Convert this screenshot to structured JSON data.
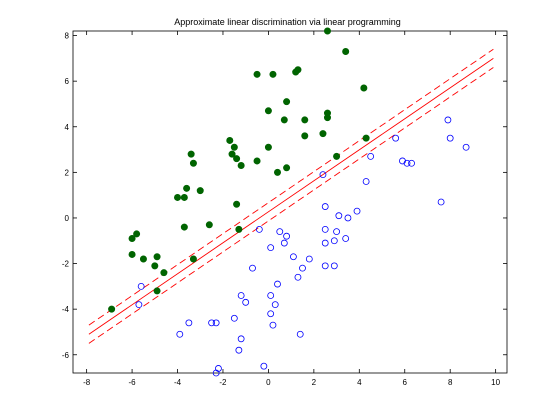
{
  "chart_data": {
    "type": "scatter",
    "title": "Approximate linear discrimination via linear programming",
    "xlabel": "",
    "ylabel": "",
    "xlim": [
      -8.6,
      10.5
    ],
    "ylim": [
      -6.8,
      8.2
    ],
    "xticks": [
      -8,
      -6,
      -4,
      -2,
      0,
      2,
      4,
      6,
      8,
      10
    ],
    "yticks": [
      -6,
      -4,
      -2,
      0,
      2,
      4,
      6,
      8
    ],
    "grid": false,
    "colors": {
      "class1": "#006400",
      "class2": "#0000ff",
      "separator": "#ff0000"
    },
    "series": [
      {
        "marker": "filled-circle",
        "color": "#006400",
        "points": [
          [
            2.6,
            8.2
          ],
          [
            3.4,
            7.3
          ],
          [
            1.3,
            6.5
          ],
          [
            1.2,
            6.4
          ],
          [
            0.2,
            6.3
          ],
          [
            -0.5,
            6.3
          ],
          [
            4.2,
            5.7
          ],
          [
            0.8,
            5.1
          ],
          [
            0.0,
            4.7
          ],
          [
            1.6,
            4.3
          ],
          [
            2.6,
            4.6
          ],
          [
            2.6,
            4.4
          ],
          [
            0.7,
            4.3
          ],
          [
            -1.7,
            3.4
          ],
          [
            -1.5,
            3.1
          ],
          [
            -3.4,
            2.8
          ],
          [
            -1.6,
            2.8
          ],
          [
            0.0,
            3.1
          ],
          [
            -0.5,
            2.5
          ],
          [
            -1.4,
            2.6
          ],
          [
            1.6,
            3.6
          ],
          [
            2.4,
            3.7
          ],
          [
            4.3,
            3.5
          ],
          [
            -3.3,
            2.4
          ],
          [
            -1.2,
            2.3
          ],
          [
            3.0,
            2.7
          ],
          [
            0.8,
            2.2
          ],
          [
            0.4,
            2.0
          ],
          [
            -3.6,
            1.3
          ],
          [
            -3.0,
            1.2
          ],
          [
            -3.7,
            0.9
          ],
          [
            -4.0,
            0.9
          ],
          [
            -2.6,
            -0.3
          ],
          [
            -1.4,
            0.6
          ],
          [
            -3.7,
            -0.4
          ],
          [
            -1.3,
            -0.5
          ],
          [
            -6.0,
            -0.9
          ],
          [
            -5.8,
            -0.7
          ],
          [
            -6.0,
            -1.6
          ],
          [
            -5.5,
            -1.8
          ],
          [
            -4.9,
            -1.7
          ],
          [
            -5.0,
            -2.1
          ],
          [
            -4.6,
            -2.4
          ],
          [
            -3.3,
            -1.8
          ],
          [
            -4.9,
            -3.2
          ],
          [
            -6.9,
            -4.0
          ]
        ]
      },
      {
        "marker": "open-circle",
        "color": "#0000ff",
        "points": [
          [
            7.9,
            4.3
          ],
          [
            5.6,
            3.5
          ],
          [
            8.0,
            3.5
          ],
          [
            8.7,
            3.1
          ],
          [
            4.5,
            2.7
          ],
          [
            5.9,
            2.5
          ],
          [
            6.1,
            2.4
          ],
          [
            6.3,
            2.4
          ],
          [
            2.4,
            1.9
          ],
          [
            4.3,
            1.6
          ],
          [
            7.6,
            0.7
          ],
          [
            2.5,
            0.5
          ],
          [
            3.1,
            0.1
          ],
          [
            3.9,
            0.3
          ],
          [
            3.5,
            0.0
          ],
          [
            2.5,
            -0.5
          ],
          [
            3.0,
            -0.6
          ],
          [
            2.9,
            -1.0
          ],
          [
            2.5,
            -1.1
          ],
          [
            3.4,
            -0.9
          ],
          [
            -0.4,
            -0.5
          ],
          [
            0.5,
            -0.6
          ],
          [
            0.8,
            -0.8
          ],
          [
            0.7,
            -1.1
          ],
          [
            0.1,
            -1.3
          ],
          [
            1.1,
            -1.7
          ],
          [
            1.8,
            -1.8
          ],
          [
            1.5,
            -2.2
          ],
          [
            2.5,
            -2.1
          ],
          [
            2.9,
            -2.1
          ],
          [
            1.3,
            -2.6
          ],
          [
            0.4,
            -2.9
          ],
          [
            -0.7,
            -2.2
          ],
          [
            -5.6,
            -3.0
          ],
          [
            -5.7,
            -3.8
          ],
          [
            0.1,
            -3.4
          ],
          [
            -1.2,
            -3.4
          ],
          [
            0.3,
            -3.8
          ],
          [
            -1.0,
            -3.7
          ],
          [
            -3.5,
            -4.6
          ],
          [
            -3.9,
            -5.1
          ],
          [
            -2.5,
            -4.6
          ],
          [
            -2.3,
            -4.6
          ],
          [
            -1.5,
            -4.4
          ],
          [
            0.1,
            -4.2
          ],
          [
            0.2,
            -4.7
          ],
          [
            -1.2,
            -5.3
          ],
          [
            -1.3,
            -5.8
          ],
          [
            1.4,
            -5.1
          ],
          [
            -2.2,
            -6.6
          ],
          [
            -2.3,
            -6.8
          ],
          [
            -0.2,
            -6.5
          ]
        ]
      }
    ],
    "lines": [
      {
        "style": "solid",
        "color": "#ff0000",
        "x": [
          -7.9,
          9.9
        ],
        "y": [
          -5.1,
          7.0
        ]
      },
      {
        "style": "dashed",
        "color": "#ff0000",
        "x": [
          -7.9,
          9.9
        ],
        "y": [
          -4.7,
          7.4
        ]
      },
      {
        "style": "dashed",
        "color": "#ff0000",
        "x": [
          -7.9,
          9.9
        ],
        "y": [
          -5.5,
          6.6
        ]
      }
    ]
  }
}
